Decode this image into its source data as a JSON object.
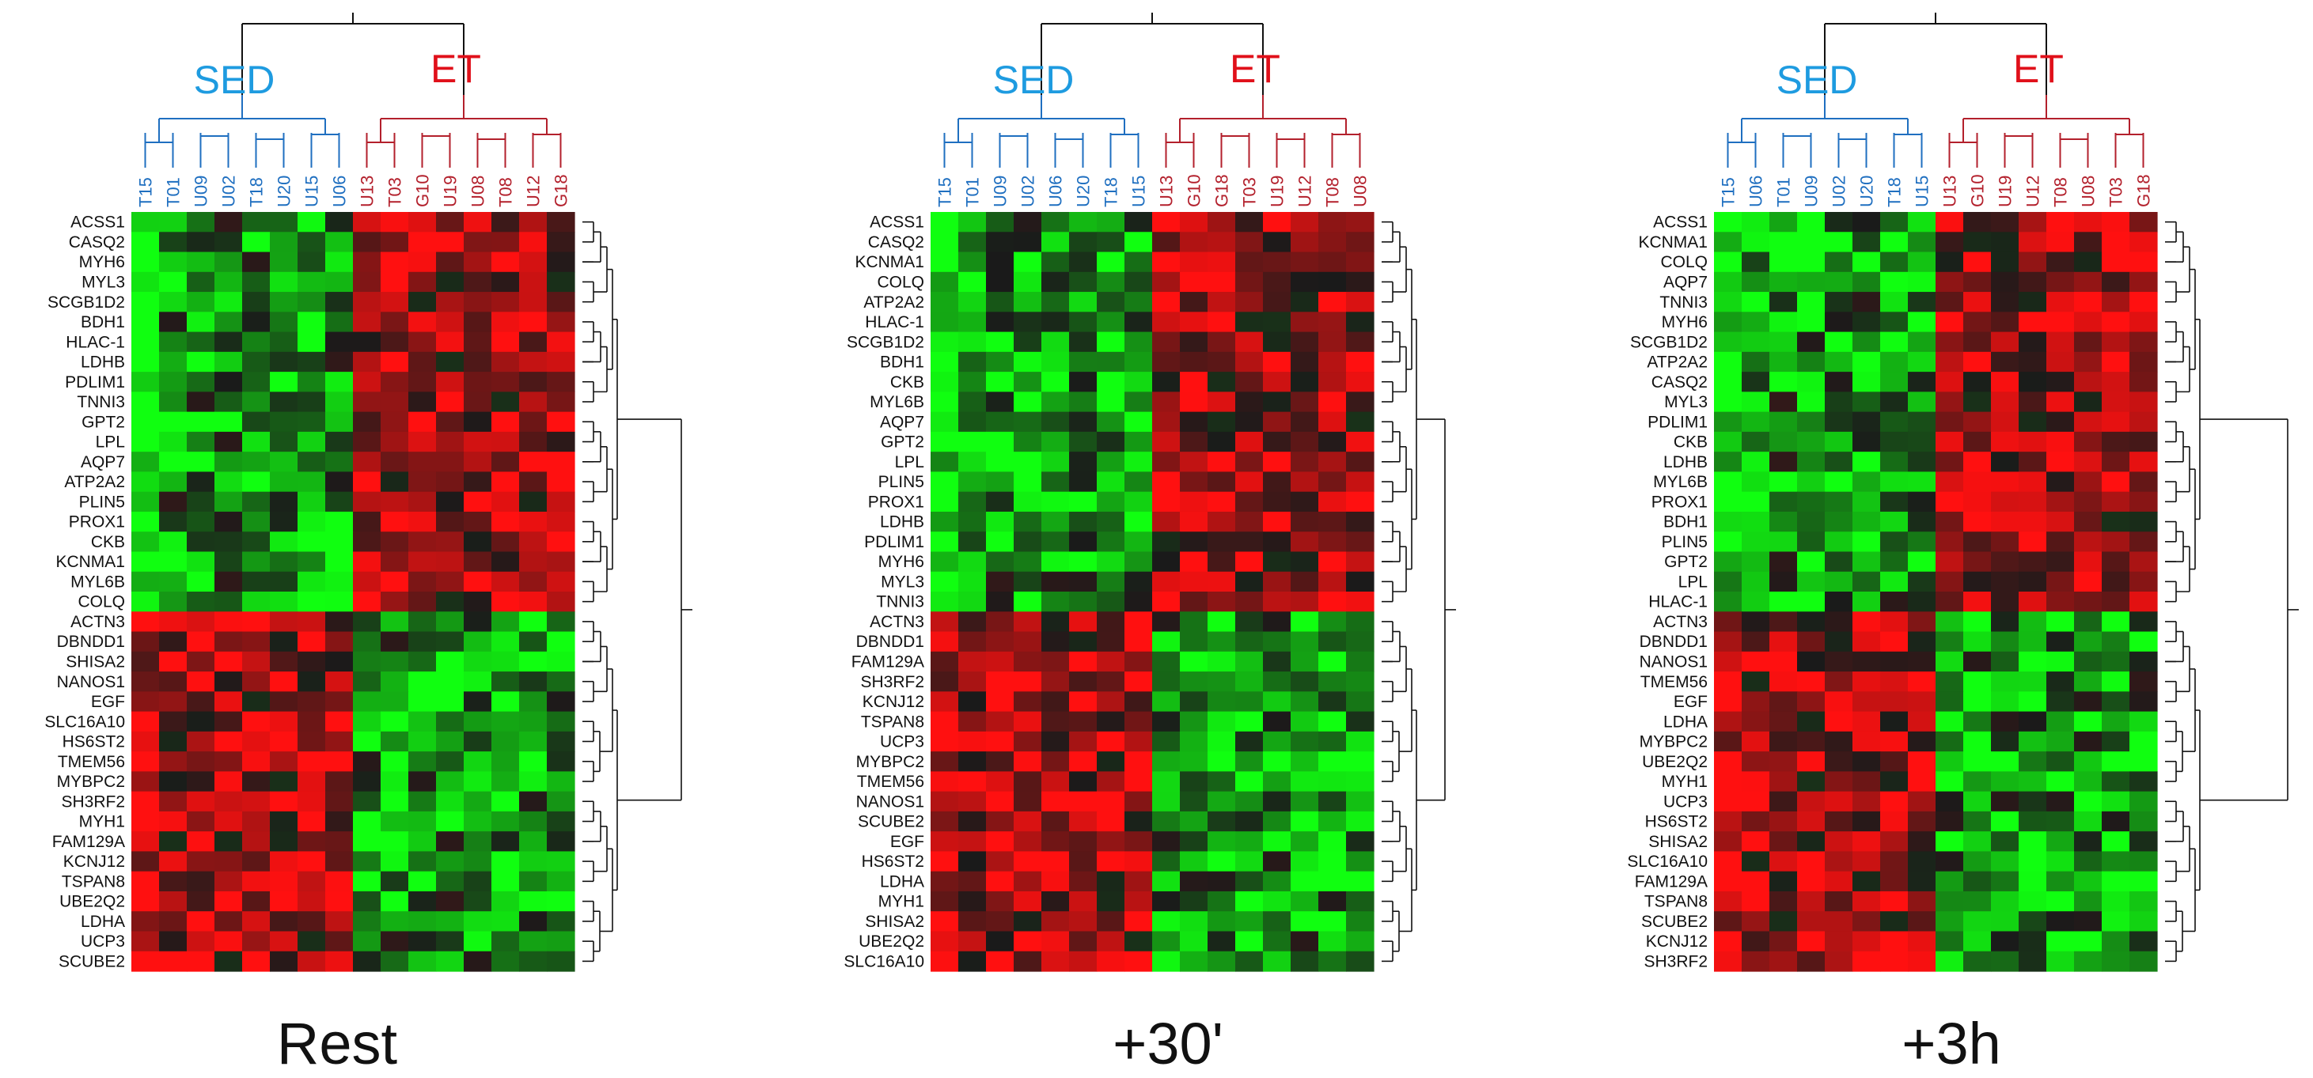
{
  "figure": {
    "group_labels": {
      "sed": "SED",
      "et": "ET"
    },
    "colors": {
      "sed": "#1f6fc0",
      "sed_label": "#1e9be0",
      "et": "#b3202c",
      "et_label": "#e0101a",
      "up": "#ff1010",
      "down": "#10ff10",
      "zero": "#1a1a1a"
    }
  },
  "chart_data": [
    {
      "type": "heatmap",
      "title": "Rest",
      "columns": [
        {
          "name": "T15",
          "group": "sed"
        },
        {
          "name": "T01",
          "group": "sed"
        },
        {
          "name": "U09",
          "group": "sed"
        },
        {
          "name": "U02",
          "group": "sed"
        },
        {
          "name": "T18",
          "group": "sed"
        },
        {
          "name": "U20",
          "group": "sed"
        },
        {
          "name": "U15",
          "group": "sed"
        },
        {
          "name": "U06",
          "group": "sed"
        },
        {
          "name": "U13",
          "group": "et"
        },
        {
          "name": "T03",
          "group": "et"
        },
        {
          "name": "G10",
          "group": "et"
        },
        {
          "name": "U19",
          "group": "et"
        },
        {
          "name": "U08",
          "group": "et"
        },
        {
          "name": "T08",
          "group": "et"
        },
        {
          "name": "U12",
          "group": "et"
        },
        {
          "name": "G18",
          "group": "et"
        }
      ],
      "rows": [
        "ACSS1",
        "CASQ2",
        "MYH6",
        "MYL3",
        "SCGB1D2",
        "BDH1",
        "HLAC-1",
        "LDHB",
        "PDLIM1",
        "TNNI3",
        "GPT2",
        "LPL",
        "AQP7",
        "ATP2A2",
        "PLIN5",
        "PROX1",
        "CKB",
        "KCNMA1",
        "MYL6B",
        "COLQ",
        "ACTN3",
        "DBNDD1",
        "SHISA2",
        "NANOS1",
        "EGF",
        "SLC16A10",
        "HS6ST2",
        "TMEM56",
        "MYBPC2",
        "SH3RF2",
        "MYH1",
        "FAM129A",
        "KCNJ12",
        "TSPAN8",
        "UBE2Q2",
        "LDHA",
        "UCP3",
        "SCUBE2"
      ],
      "upper_row_count": 20
    },
    {
      "type": "heatmap",
      "title": "+30'",
      "columns": [
        {
          "name": "T15",
          "group": "sed"
        },
        {
          "name": "T01",
          "group": "sed"
        },
        {
          "name": "U09",
          "group": "sed"
        },
        {
          "name": "U02",
          "group": "sed"
        },
        {
          "name": "U06",
          "group": "sed"
        },
        {
          "name": "U20",
          "group": "sed"
        },
        {
          "name": "T18",
          "group": "sed"
        },
        {
          "name": "U15",
          "group": "sed"
        },
        {
          "name": "U13",
          "group": "et"
        },
        {
          "name": "G10",
          "group": "et"
        },
        {
          "name": "G18",
          "group": "et"
        },
        {
          "name": "T03",
          "group": "et"
        },
        {
          "name": "U19",
          "group": "et"
        },
        {
          "name": "U12",
          "group": "et"
        },
        {
          "name": "T08",
          "group": "et"
        },
        {
          "name": "U08",
          "group": "et"
        }
      ],
      "rows": [
        "ACSS1",
        "CASQ2",
        "KCNMA1",
        "COLQ",
        "ATP2A2",
        "HLAC-1",
        "SCGB1D2",
        "BDH1",
        "CKB",
        "MYL6B",
        "AQP7",
        "GPT2",
        "LPL",
        "PLIN5",
        "PROX1",
        "LDHB",
        "PDLIM1",
        "MYH6",
        "MYL3",
        "TNNI3",
        "ACTN3",
        "DBNDD1",
        "FAM129A",
        "SH3RF2",
        "KCNJ12",
        "TSPAN8",
        "UCP3",
        "MYBPC2",
        "TMEM56",
        "NANOS1",
        "SCUBE2",
        "EGF",
        "HS6ST2",
        "LDHA",
        "MYH1",
        "SHISA2",
        "UBE2Q2",
        "SLC16A10"
      ],
      "upper_row_count": 20
    },
    {
      "type": "heatmap",
      "title": "+3h",
      "columns": [
        {
          "name": "T15",
          "group": "sed"
        },
        {
          "name": "U06",
          "group": "sed"
        },
        {
          "name": "T01",
          "group": "sed"
        },
        {
          "name": "U09",
          "group": "sed"
        },
        {
          "name": "U02",
          "group": "sed"
        },
        {
          "name": "U20",
          "group": "sed"
        },
        {
          "name": "T18",
          "group": "sed"
        },
        {
          "name": "U15",
          "group": "sed"
        },
        {
          "name": "U13",
          "group": "et"
        },
        {
          "name": "G10",
          "group": "et"
        },
        {
          "name": "U19",
          "group": "et"
        },
        {
          "name": "U12",
          "group": "et"
        },
        {
          "name": "T08",
          "group": "et"
        },
        {
          "name": "U08",
          "group": "et"
        },
        {
          "name": "T03",
          "group": "et"
        },
        {
          "name": "G18",
          "group": "et"
        }
      ],
      "rows": [
        "ACSS1",
        "KCNMA1",
        "COLQ",
        "AQP7",
        "TNNI3",
        "MYH6",
        "SCGB1D2",
        "ATP2A2",
        "CASQ2",
        "MYL3",
        "PDLIM1",
        "CKB",
        "LDHB",
        "MYL6B",
        "PROX1",
        "BDH1",
        "PLIN5",
        "GPT2",
        "LPL",
        "HLAC-1",
        "ACTN3",
        "DBNDD1",
        "NANOS1",
        "TMEM56",
        "EGF",
        "LDHA",
        "MYBPC2",
        "UBE2Q2",
        "MYH1",
        "UCP3",
        "HS6ST2",
        "SHISA2",
        "SLC16A10",
        "FAM129A",
        "TSPAN8",
        "SCUBE2",
        "KCNJ12",
        "SH3RF2"
      ],
      "upper_row_count": 20
    }
  ]
}
